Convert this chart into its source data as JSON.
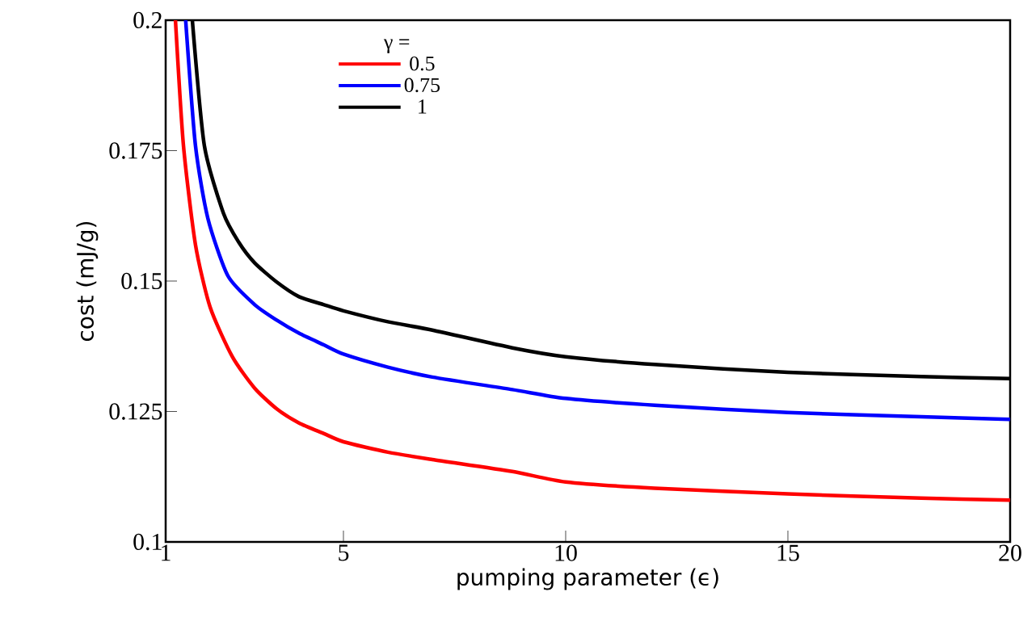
{
  "chart_data": {
    "type": "line",
    "xlabel": "pumping parameter (ϵ)",
    "ylabel": "cost (mJ/g)",
    "legend_title": "γ =",
    "legend": "top left",
    "marker": "none",
    "line_style": "solid",
    "grid": false,
    "xlim": [
      1,
      20
    ],
    "xticks": [
      1,
      5,
      10,
      15,
      20
    ],
    "ylim": [
      0.1,
      0.2
    ],
    "yticks": [
      0.1,
      0.125,
      0.15,
      0.175,
      0.2
    ],
    "series": [
      {
        "name": "0.5",
        "color": "#ff0000",
        "x": [
          1.22,
          1.4,
          1.67,
          2,
          2.5,
          3,
          3.5,
          4,
          4.55,
          5,
          6,
          7,
          8.8,
          10,
          12,
          15,
          18,
          20
        ],
        "values": [
          0.2,
          0.176,
          0.157,
          0.145,
          0.1355,
          0.1295,
          0.1255,
          0.1228,
          0.1208,
          0.1192,
          0.1172,
          0.1158,
          0.1135,
          0.1115,
          0.1103,
          0.1092,
          0.1084,
          0.108
        ]
      },
      {
        "name": "0.75",
        "color": "#0000ff",
        "x": [
          1.45,
          1.67,
          1.95,
          2.4,
          3,
          3.5,
          4,
          4.55,
          5,
          6,
          7,
          8.8,
          10,
          12,
          15,
          18,
          20
        ],
        "values": [
          0.2,
          0.176,
          0.162,
          0.151,
          0.1455,
          0.1425,
          0.14,
          0.1378,
          0.136,
          0.1335,
          0.1316,
          0.1292,
          0.1275,
          0.1262,
          0.1248,
          0.124,
          0.1235
        ]
      },
      {
        "name": "1",
        "color": "#000000",
        "x": [
          1.6,
          1.87,
          2.3,
          2.64,
          3,
          3.5,
          4,
          4.55,
          5,
          6,
          7,
          8.8,
          10,
          12,
          15,
          18,
          20
        ],
        "values": [
          0.2,
          0.176,
          0.163,
          0.1575,
          0.1535,
          0.1498,
          0.147,
          0.1455,
          0.1443,
          0.1422,
          0.1406,
          0.1372,
          0.1355,
          0.134,
          0.1325,
          0.1317,
          0.1313
        ]
      }
    ]
  }
}
